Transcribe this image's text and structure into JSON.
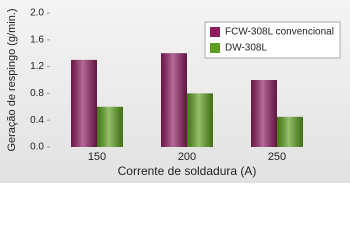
{
  "chart_data": {
    "type": "bar",
    "categories": [
      "150",
      "200",
      "250"
    ],
    "series": [
      {
        "name": "FCW-308L convencional",
        "color": "#8c1e5e",
        "values": [
          1.3,
          1.4,
          1.0
        ]
      },
      {
        "name": "DW-308L",
        "color": "#5e9e1e",
        "values": [
          0.6,
          0.8,
          0.45
        ]
      }
    ],
    "ylim": [
      0,
      2.0
    ],
    "yticks": [
      {
        "value": 0,
        "label": "0.0"
      },
      0.4,
      0.8,
      1.2,
      1.6,
      {
        "value": 2.0,
        "label": "2.0"
      }
    ],
    "y_label": "Geração de respingo (g/min.)",
    "x_label": "Corrente de soldadura (A)",
    "legend": "top-right"
  }
}
